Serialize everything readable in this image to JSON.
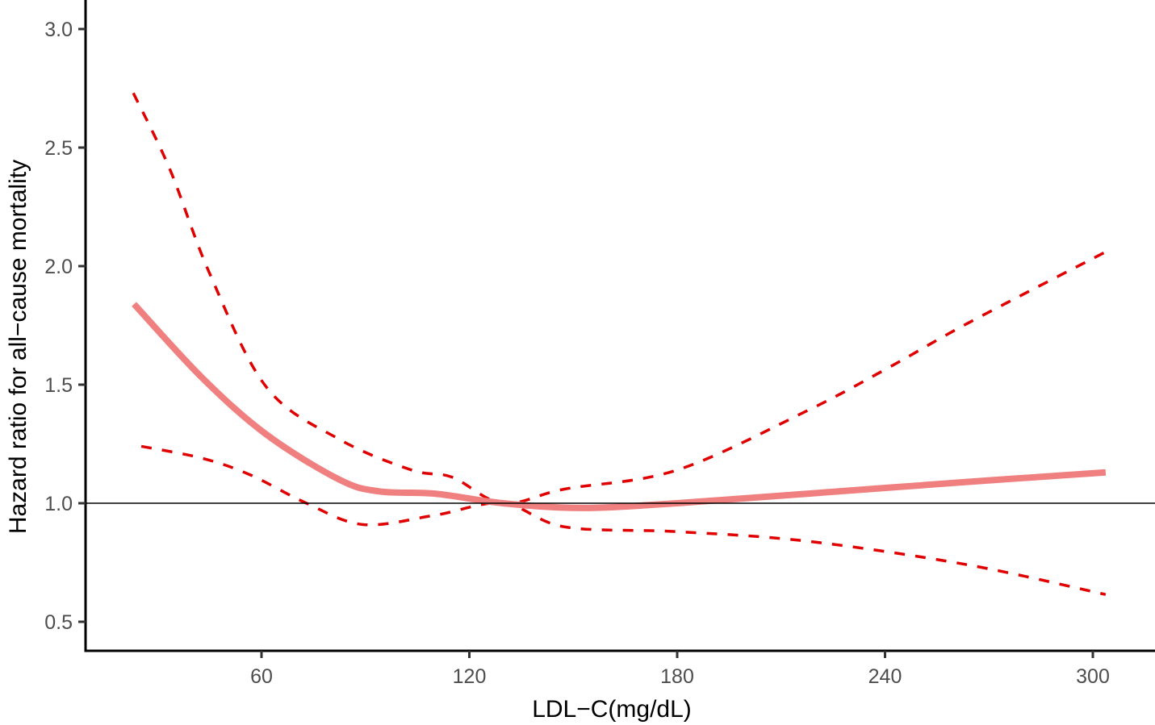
{
  "chart_data": {
    "type": "line",
    "title": "",
    "xlabel": "LDL−C(mg/dL)",
    "ylabel": "Hazard ratio for all−cause mortality",
    "xlim": [
      9,
      320
    ],
    "ylim": [
      0.39,
      3.11
    ],
    "x_ticks": [
      60,
      120,
      180,
      240,
      300
    ],
    "x_tick_labels": [
      "60",
      "120",
      "180",
      "240",
      "300"
    ],
    "y_ticks": [
      0.5,
      1.0,
      1.5,
      2.0,
      2.5,
      3.0
    ],
    "y_tick_labels": [
      "0.5",
      "1.0",
      "1.5",
      "2.0",
      "2.5",
      "3.0"
    ],
    "grid": false,
    "legend": null,
    "reference_line": {
      "y": 1.0,
      "color": "#000000"
    },
    "series": [
      {
        "name": "Hazard ratio",
        "style": "solid",
        "color": "#f08080",
        "x": [
          23.2,
          42.8,
          61.4,
          82.4,
          94.0,
          110.3,
          129.7,
          152.3,
          180.0,
          217.5,
          264.0,
          303.7
        ],
        "values": [
          1.84,
          1.53,
          1.29,
          1.1,
          1.05,
          1.04,
          1.0,
          0.98,
          1.0,
          1.04,
          1.09,
          1.13
        ]
      },
      {
        "name": "Upper 95% CI",
        "style": "dashed",
        "color": "#e00000",
        "x": [
          23.0,
          33.5,
          45.0,
          61.4,
          82.4,
          103.3,
          115.0,
          129.7,
          147.6,
          180.0,
          217.5,
          240.8,
          264.0,
          303.7
        ],
        "values": [
          2.73,
          2.41,
          1.97,
          1.49,
          1.27,
          1.14,
          1.11,
          1.0,
          1.06,
          1.14,
          1.39,
          1.57,
          1.76,
          2.06
        ]
      },
      {
        "name": "Lower 95% CI",
        "style": "dashed",
        "color": "#e00000",
        "x": [
          25.3,
          42.8,
          56.7,
          73.0,
          89.4,
          110.3,
          129.7,
          147.6,
          180.0,
          217.5,
          264.0,
          303.7
        ],
        "values": [
          1.24,
          1.19,
          1.12,
          1.0,
          0.91,
          0.95,
          1.0,
          0.9,
          0.88,
          0.84,
          0.74,
          0.615
        ]
      }
    ]
  }
}
